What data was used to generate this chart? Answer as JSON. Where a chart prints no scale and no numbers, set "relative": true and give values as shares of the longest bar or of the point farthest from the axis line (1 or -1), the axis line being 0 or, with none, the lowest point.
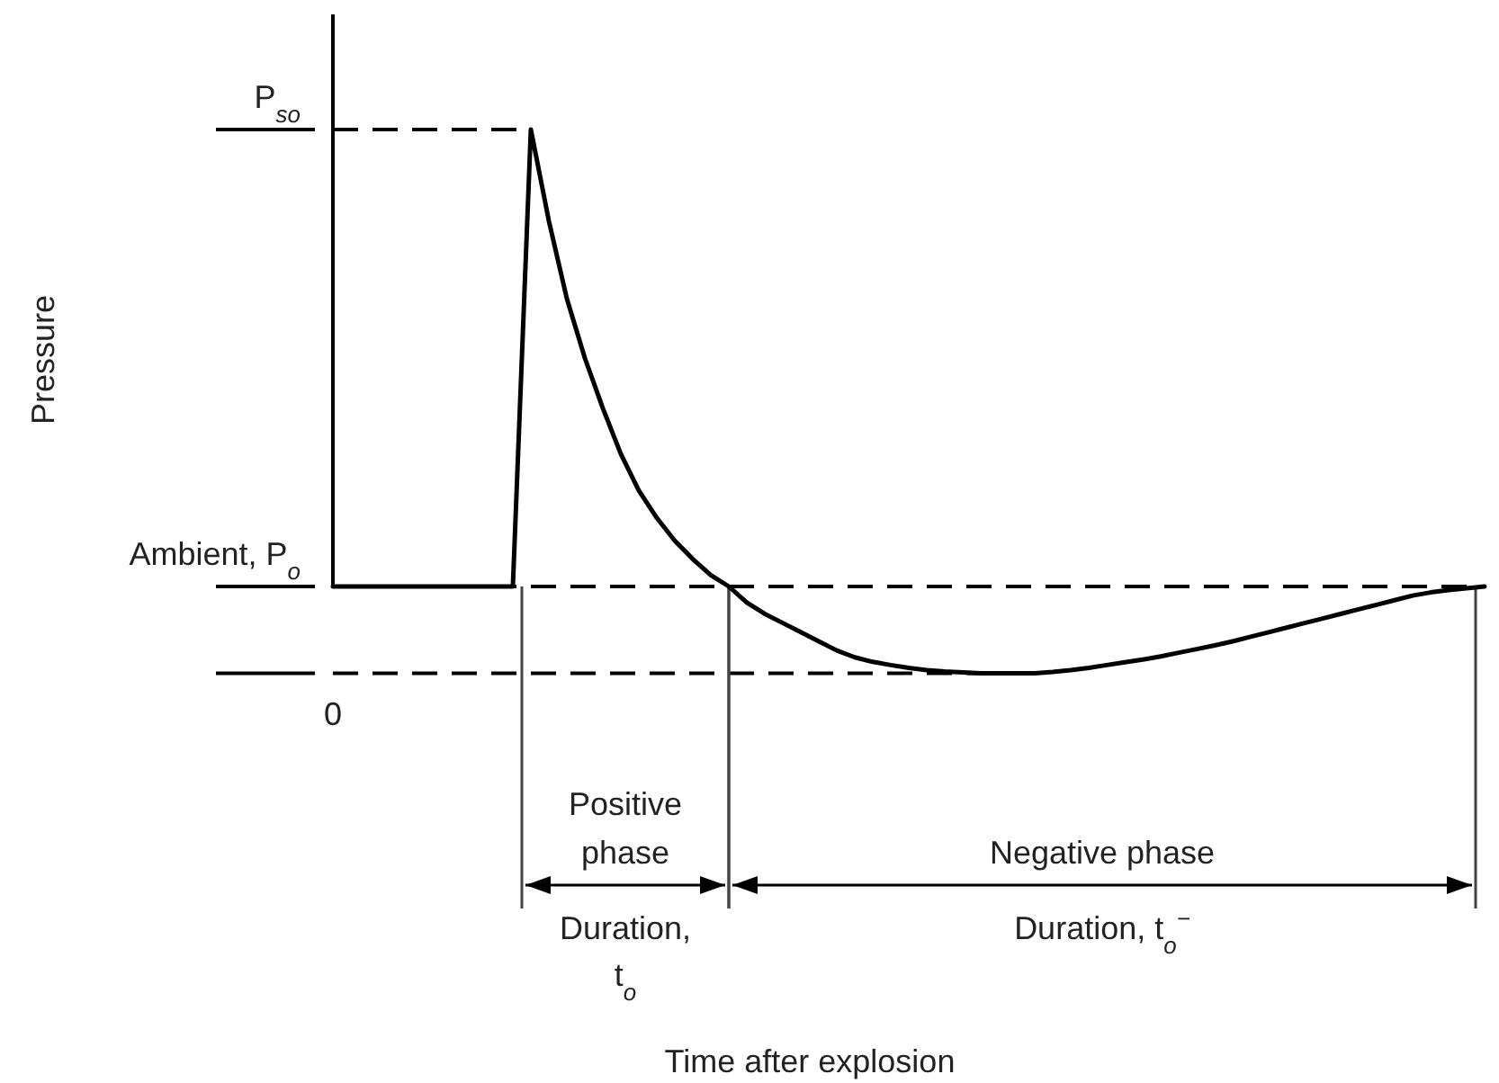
{
  "chart_data": {
    "type": "line",
    "relative": true,
    "categories": [
      null,
      null,
      null,
      null,
      null,
      null,
      null,
      null,
      null,
      null,
      null,
      null,
      null,
      null,
      null,
      null,
      null,
      null,
      null,
      null,
      null,
      null,
      null,
      null,
      null,
      null,
      null,
      null,
      null,
      null,
      null,
      null,
      null,
      null,
      null,
      null,
      null,
      null,
      null,
      null,
      null,
      null,
      null,
      null,
      null,
      null,
      null,
      null,
      null,
      null,
      null,
      null,
      null,
      null,
      null,
      null,
      null,
      null,
      null,
      null,
      null,
      null,
      null,
      null,
      null
    ],
    "series": [
      {
        "color": "#000000",
        "values": [
          0,
          0,
          0,
          0,
          0,
          0,
          0,
          0,
          0,
          0,
          0,
          1,
          0.8,
          0.63,
          0.5,
          0.39,
          0.29,
          0.21,
          0.15,
          0.1,
          0.06,
          0.025,
          0,
          -0.035,
          -0.06,
          -0.08,
          -0.1,
          -0.12,
          -0.14,
          -0.155,
          -0.165,
          -0.172,
          -0.178,
          -0.183,
          -0.186,
          -0.188,
          -0.19,
          -0.19,
          -0.19,
          -0.19,
          -0.187,
          -0.183,
          -0.178,
          -0.172,
          -0.166,
          -0.16,
          -0.153,
          -0.145,
          -0.137,
          -0.129,
          -0.12,
          -0.11,
          -0.1,
          -0.09,
          -0.08,
          -0.07,
          -0.06,
          -0.05,
          -0.04,
          -0.03,
          -0.02,
          -0.013,
          -0.008,
          -0.004,
          0
        ]
      }
    ],
    "ref_lines": [
      {
        "axis": "y",
        "value": 1,
        "label": "P$_{so}$",
        "line_style": "dashed",
        "color": "#000000"
      },
      {
        "axis": "y",
        "value": 0,
        "label": "Ambient, P$_{o}$",
        "line_style": "dashed",
        "color": "#000000"
      },
      {
        "axis": "y",
        "value": -0.19,
        "line_style": "dashed",
        "color": "#000000"
      }
    ],
    "annotations": [
      {
        "text": "0"
      },
      "Pressure",
      "Time after explosion",
      "Positive phase",
      "Duration, t$_{o}$",
      "Negative phase",
      "Duration, t$_{o}$$^{−}$"
    ]
  }
}
